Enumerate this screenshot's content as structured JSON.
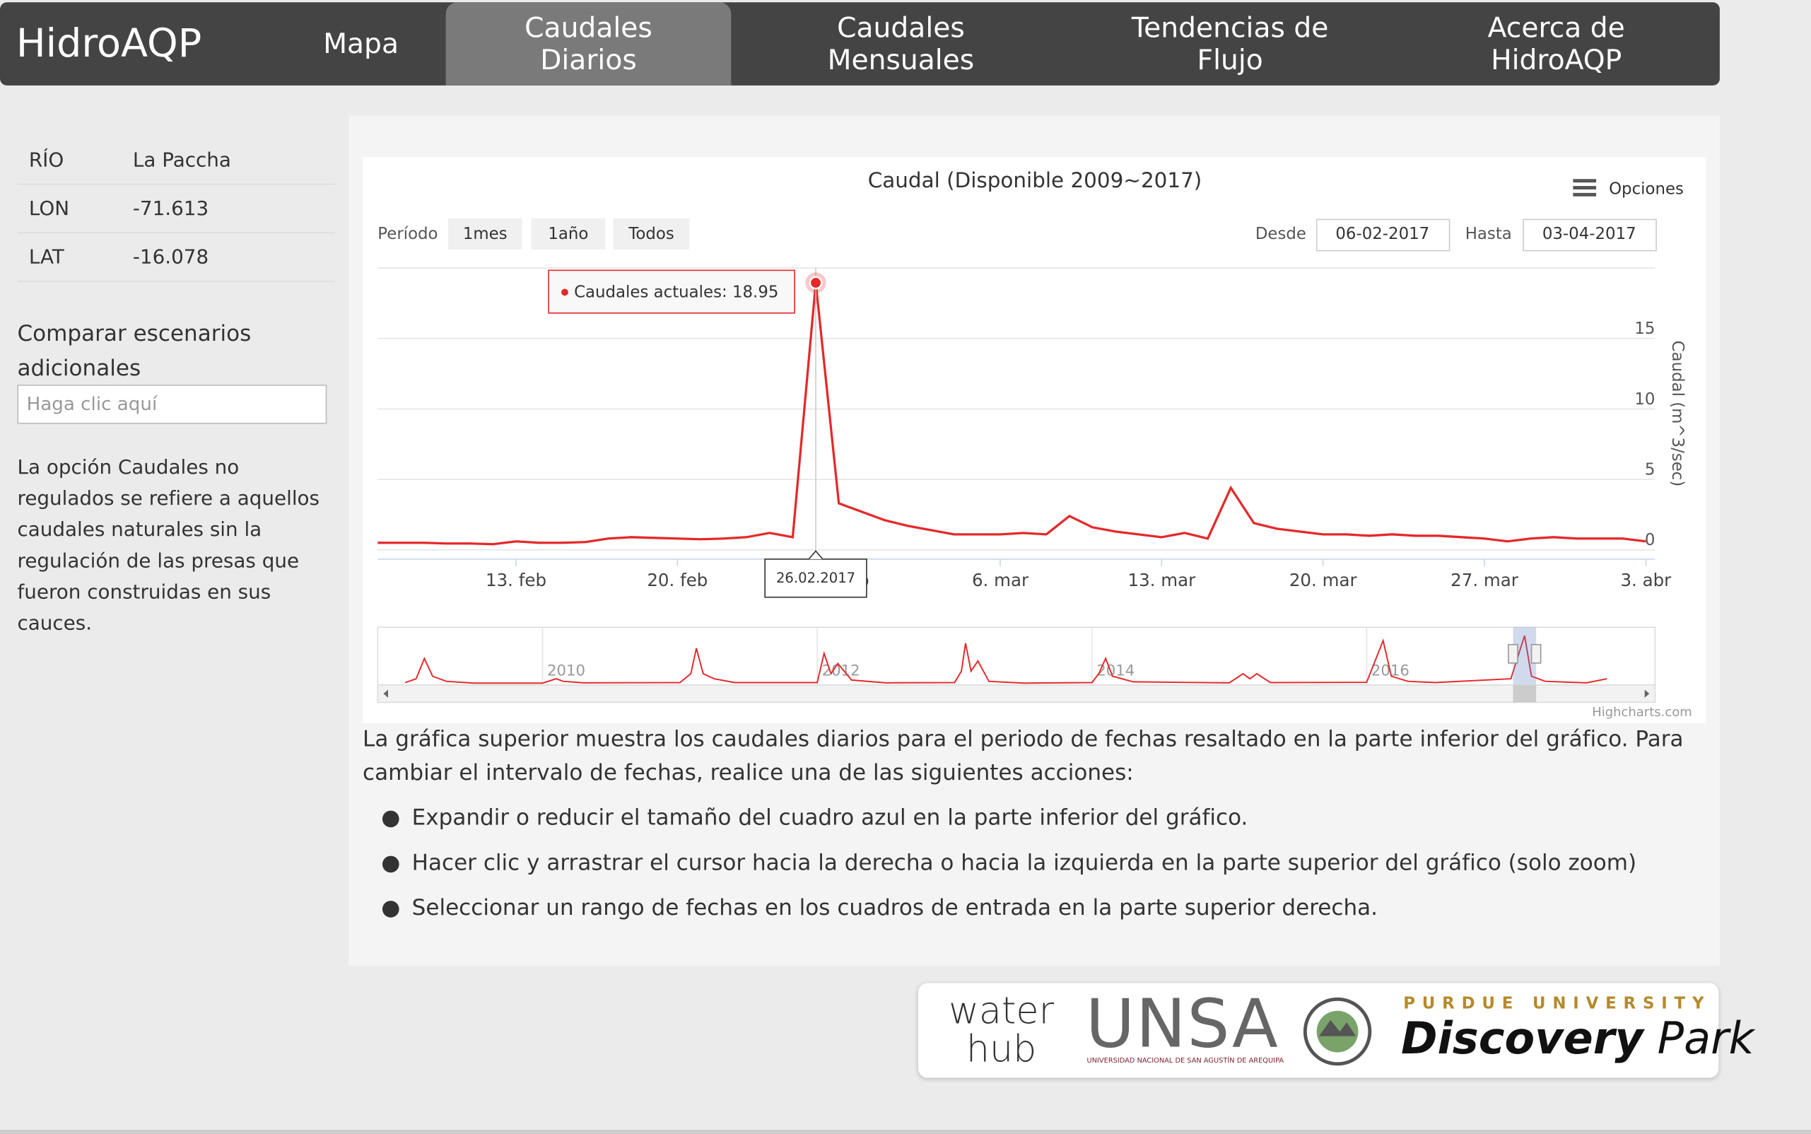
{
  "nav": {
    "brand": "HidroAQP",
    "items": [
      "Mapa",
      "Caudales Diarios",
      "Caudales Mensuales",
      "Tendencias de Flujo",
      "Acerca de HidroAQP"
    ]
  },
  "sidebar": {
    "rows": [
      [
        "RÍO",
        "La Paccha"
      ],
      [
        "LON",
        "-71.613"
      ],
      [
        "LAT",
        "-16.078"
      ]
    ],
    "compare_label": "Comparar escenarios adicionales",
    "compare_placeholder": "Haga clic aquí",
    "note": "La opción Caudales no regulados se refiere a aquellos caudales naturales sin la regulación de las presas que fueron construidas en sus cauces."
  },
  "chart_data": {
    "type": "line",
    "title": "Caudal (Disponible 2009~2017)",
    "menu": "Opciones",
    "range_label": "Período",
    "range_buttons": [
      "1mes",
      "1año",
      "Todos"
    ],
    "from_label": "Desde",
    "from_value": "06-02-2017",
    "to_label": "Hasta",
    "to_value": "03-04-2017",
    "y_label": "Caudal (m^3/sec)",
    "tooltip_date": "26.02.2017",
    "credits": "Highcharts.com",
    "x": [
      "2017-02-07",
      "2017-02-08",
      "2017-02-09",
      "2017-02-10",
      "2017-02-11",
      "2017-02-12",
      "2017-02-13",
      "2017-02-14",
      "2017-02-15",
      "2017-02-16",
      "2017-02-17",
      "2017-02-18",
      "2017-02-19",
      "2017-02-20",
      "2017-02-21",
      "2017-02-22",
      "2017-02-23",
      "2017-02-24",
      "2017-02-25",
      "2017-02-26",
      "2017-02-27",
      "2017-02-28",
      "2017-03-01",
      "2017-03-02",
      "2017-03-03",
      "2017-03-04",
      "2017-03-05",
      "2017-03-06",
      "2017-03-07",
      "2017-03-08",
      "2017-03-09",
      "2017-03-10",
      "2017-03-11",
      "2017-03-12",
      "2017-03-13",
      "2017-03-14",
      "2017-03-15",
      "2017-03-16",
      "2017-03-17",
      "2017-03-18",
      "2017-03-19",
      "2017-03-20",
      "2017-03-21",
      "2017-03-22",
      "2017-03-23",
      "2017-03-24",
      "2017-03-25",
      "2017-03-26",
      "2017-03-27",
      "2017-03-28",
      "2017-03-29",
      "2017-03-30",
      "2017-03-31",
      "2017-04-01",
      "2017-04-02",
      "2017-04-03"
    ],
    "series": [
      {
        "name": "Caudales actuales",
        "color": "#e4292b",
        "values": [
          0.5,
          0.5,
          0.5,
          0.45,
          0.45,
          0.4,
          0.6,
          0.5,
          0.5,
          0.55,
          0.8,
          0.9,
          0.85,
          0.8,
          0.75,
          0.8,
          0.9,
          1.2,
          0.9,
          18.95,
          3.3,
          2.7,
          2.1,
          1.7,
          1.4,
          1.1,
          1.1,
          1.1,
          1.2,
          1.1,
          2.4,
          1.6,
          1.3,
          1.1,
          0.9,
          1.2,
          0.8,
          4.4,
          1.9,
          1.5,
          1.3,
          1.1,
          1.1,
          1.0,
          1.1,
          1.0,
          1.0,
          0.9,
          0.8,
          0.6,
          0.8,
          0.9,
          0.8,
          0.8,
          0.8,
          0.6
        ]
      }
    ],
    "highlight": 19,
    "xlim": [
      "2017-02-07",
      "2017-04-03"
    ],
    "xticks": [
      {
        "value": "2017-02-13",
        "label": "13. feb"
      },
      {
        "value": "2017-02-20",
        "label": "20. feb"
      },
      {
        "value": "2017-02-27",
        "label": "27. feb"
      },
      {
        "value": "2017-03-06",
        "label": "6. mar"
      },
      {
        "value": "2017-03-13",
        "label": "13. mar"
      },
      {
        "value": "2017-03-20",
        "label": "20. mar"
      },
      {
        "value": "2017-03-27",
        "label": "27. mar"
      },
      {
        "value": "2017-04-03",
        "label": "3. abr"
      }
    ],
    "ylim": [
      0,
      20
    ],
    "yticks": [
      0,
      5,
      10,
      15
    ],
    "grid": true,
    "navigator": {
      "xlim": [
        2008.8,
        2018.1
      ],
      "ylim": [
        0,
        20
      ],
      "xticks": [
        2010,
        2012,
        2014,
        2016
      ],
      "x": [
        2009.0,
        2009.08,
        2009.14,
        2009.2,
        2009.3,
        2009.5,
        2010.0,
        2010.1,
        2010.15,
        2010.3,
        2011.0,
        2011.08,
        2011.12,
        2011.17,
        2011.25,
        2011.4,
        2012.0,
        2012.05,
        2012.1,
        2012.15,
        2012.25,
        2012.5,
        2013.0,
        2013.05,
        2013.08,
        2013.12,
        2013.17,
        2013.25,
        2013.5,
        2014.0,
        2014.05,
        2014.1,
        2014.15,
        2014.3,
        2015.0,
        2015.1,
        2015.15,
        2015.2,
        2015.3,
        2016.0,
        2016.12,
        2016.18,
        2016.3,
        2016.5,
        2017.05,
        2017.15,
        2017.2,
        2017.3,
        2017.6,
        2017.75
      ],
      "values": [
        0.5,
        2,
        10,
        3,
        1,
        0.3,
        0.3,
        2,
        1,
        0.4,
        0.5,
        4,
        14,
        4,
        2,
        0.5,
        0.5,
        12,
        4,
        8,
        1.5,
        0.4,
        0.5,
        5,
        16,
        5,
        9,
        1,
        0.3,
        0.5,
        4,
        10,
        3,
        0.8,
        0.4,
        4,
        2,
        4,
        0.5,
        0.6,
        17,
        3,
        1,
        0.5,
        2,
        19,
        3,
        1,
        0.4,
        2
      ]
    }
  },
  "description": {
    "intro": "La gráfica superior muestra los caudales diarios para el periodo de fechas resaltado en la parte inferior del gráfico. Para cambiar el intervalo de fechas, realice una de las siguientes acciones:",
    "bullets": [
      "Expandir o reducir el tamaño del cuadro azul en la parte inferior del gráfico.",
      "Hacer clic y arrastrar el cursor hacia la derecha o hacia la izquierda en la parte superior del gráfico (solo zoom)",
      "Seleccionar un rango de fechas en los cuadros de entrada en la parte superior derecha."
    ]
  },
  "logos": {
    "waterhub": [
      "water",
      "hub"
    ],
    "unsa": "UNSA",
    "unsa_sub": "UNIVERSIDAD NACIONAL DE SAN AGUSTÍN DE AREQUIPA",
    "purdue": "PURDUE UNIVERSITY",
    "discovery": "Discovery",
    "park": "Park"
  }
}
